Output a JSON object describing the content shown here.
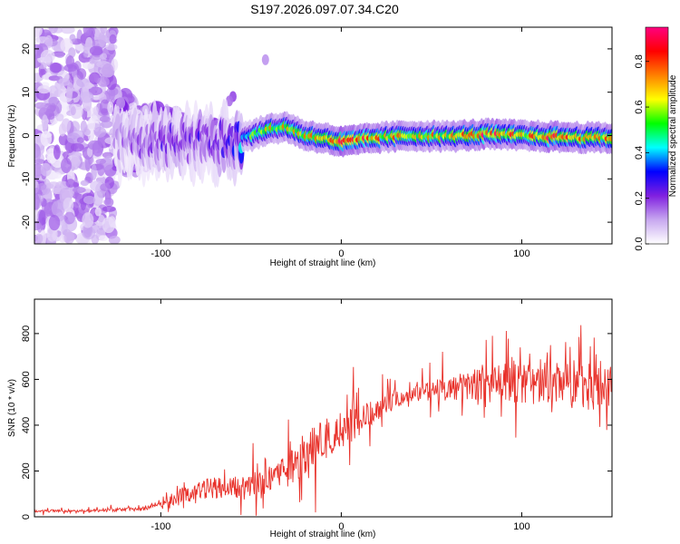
{
  "chart_data": [
    {
      "type": "heatmap",
      "title": "S197.2026.097.07.34.C20",
      "xlabel": "Height of straight line (km)",
      "ylabel": "Frequency (Hz)",
      "xlim": [
        -170,
        150
      ],
      "ylim": [
        -25,
        25
      ],
      "xticks": [
        -100,
        0,
        100
      ],
      "xtick_labels": [
        "-100",
        "0",
        "100"
      ],
      "yticks": [
        -20,
        -10,
        0,
        10,
        20
      ],
      "ytick_labels": [
        "-20",
        "-10",
        "0",
        "10",
        "20"
      ],
      "colorbar": {
        "label": "Normalized spectral amplitude",
        "range": [
          0,
          0.95
        ],
        "ticks": [
          0.0,
          0.2,
          0.4,
          0.6,
          0.8
        ],
        "tick_labels": [
          "0.0",
          "0.2",
          "0.4",
          "0.6",
          "0.8"
        ],
        "colormap": [
          "#ffffff",
          "#c8a8f0",
          "#8020e0",
          "#0000ff",
          "#00ffff",
          "#00ff00",
          "#ffff00",
          "#ff8000",
          "#ff0000",
          "#ff0080"
        ]
      },
      "ridge": {
        "description_points_x": [
          -120,
          -100,
          -80,
          -60,
          -50,
          -40,
          -30,
          -20,
          -10,
          0,
          10,
          20,
          40,
          60,
          80,
          100,
          120,
          140,
          150
        ],
        "description_points_y": [
          -0.5,
          -1,
          -2,
          -1,
          0,
          1.5,
          2,
          0,
          -0.5,
          -1.5,
          -1,
          -0.5,
          0,
          -0.2,
          0.3,
          0,
          -0.3,
          -0.5,
          -0.5
        ],
        "peak_amplitude": [
          0.15,
          0.25,
          0.25,
          0.3,
          0.55,
          0.65,
          0.7,
          0.7,
          0.8,
          0.9,
          0.85,
          0.75,
          0.7,
          0.7,
          0.85,
          0.75,
          0.85,
          0.8,
          0.7
        ]
      }
    },
    {
      "type": "line",
      "title": "",
      "xlabel": "Height of straight line (km)",
      "ylabel": "SNR (10 * v/v)",
      "xlim": [
        -170,
        150
      ],
      "ylim": [
        0,
        950
      ],
      "xticks": [
        -100,
        0,
        100
      ],
      "xtick_labels": [
        "-100",
        "0",
        "100"
      ],
      "yticks": [
        0,
        200,
        400,
        600,
        800
      ],
      "ytick_labels": [
        "0",
        "200",
        "400",
        "600",
        "800"
      ],
      "color": "#e8312a",
      "trend_x": [
        -170,
        -140,
        -110,
        -100,
        -90,
        -80,
        -70,
        -60,
        -50,
        -40,
        -30,
        -20,
        -10,
        0,
        10,
        20,
        30,
        40,
        60,
        80,
        100,
        120,
        140,
        150
      ],
      "trend_y": [
        25,
        25,
        35,
        60,
        90,
        110,
        130,
        130,
        120,
        150,
        200,
        280,
        330,
        370,
        420,
        470,
        510,
        540,
        560,
        580,
        580,
        575,
        570,
        565
      ],
      "noise_amplitude": [
        10,
        10,
        15,
        30,
        50,
        70,
        80,
        80,
        90,
        110,
        130,
        150,
        160,
        150,
        110,
        80,
        60,
        60,
        90,
        130,
        160,
        170,
        170,
        160
      ]
    }
  ]
}
